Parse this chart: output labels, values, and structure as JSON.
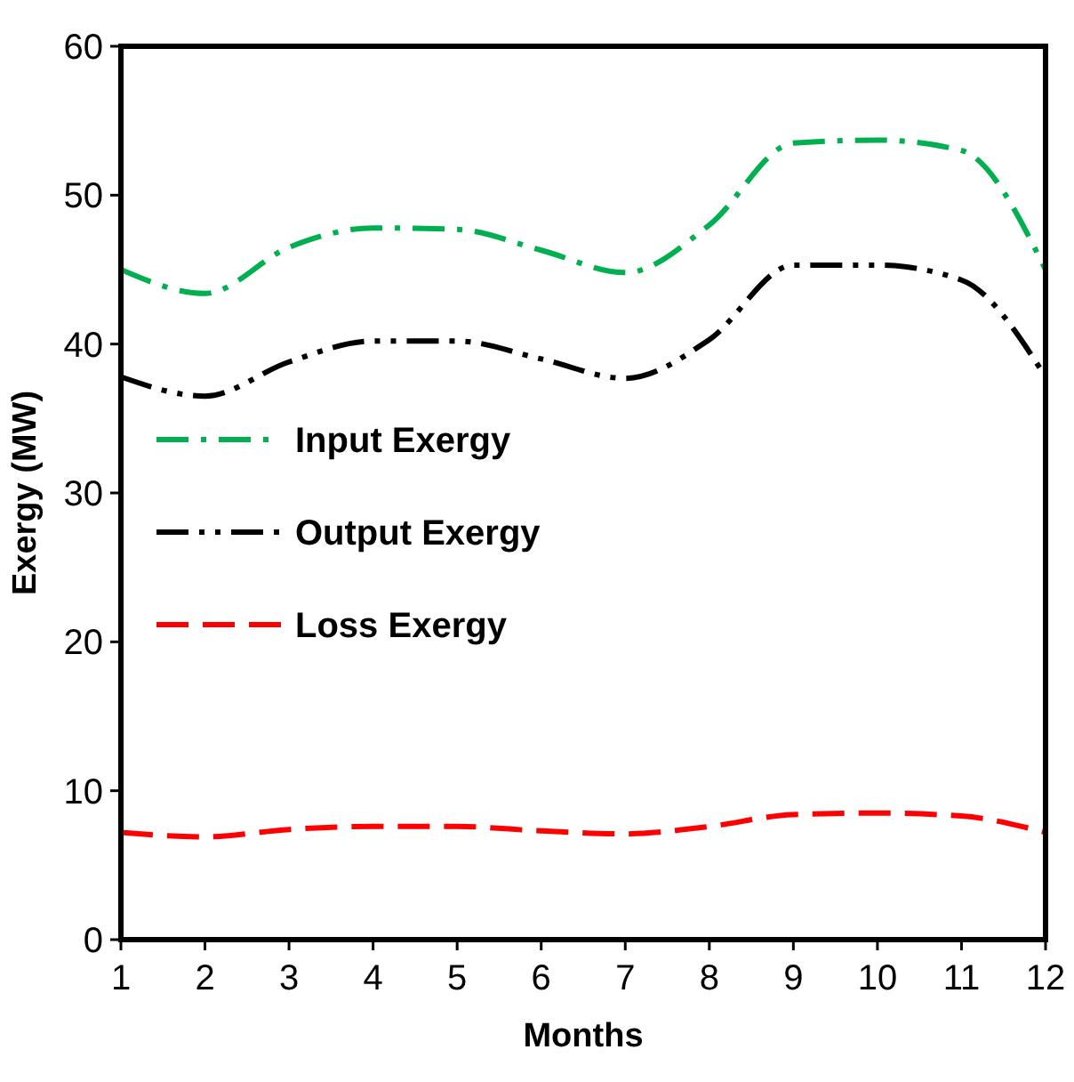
{
  "chart_data": {
    "type": "line",
    "xlabel": "Months",
    "ylabel": "Exergy (MW)",
    "x": [
      1,
      2,
      3,
      4,
      5,
      6,
      7,
      8,
      9,
      10,
      11,
      12
    ],
    "series": [
      {
        "name": "Input Exergy",
        "color": "#00b050",
        "line_style": "dashdot",
        "values": [
          45.0,
          43.4,
          46.5,
          47.8,
          47.7,
          46.3,
          44.8,
          48.0,
          53.5,
          53.7,
          53.0,
          45.0
        ]
      },
      {
        "name": "Output Exergy",
        "color": "#000000",
        "line_style": "dashdotdot",
        "values": [
          37.8,
          36.5,
          38.8,
          40.2,
          40.2,
          39.0,
          37.7,
          40.3,
          45.3,
          45.3,
          44.3,
          37.8
        ]
      },
      {
        "name": "Loss Exergy",
        "color": "#ff0000",
        "line_style": "dashed",
        "values": [
          7.2,
          6.9,
          7.4,
          7.6,
          7.6,
          7.3,
          7.1,
          7.6,
          8.4,
          8.5,
          8.3,
          7.2
        ]
      }
    ],
    "xlim": [
      1,
      12
    ],
    "xticks": [
      1,
      2,
      3,
      4,
      5,
      6,
      7,
      8,
      9,
      10,
      11,
      12
    ],
    "ylim": [
      0,
      60
    ],
    "yticks": [
      0,
      10,
      20,
      30,
      40,
      50,
      60
    ],
    "grid": false,
    "legend": "center left",
    "marker": "none"
  }
}
